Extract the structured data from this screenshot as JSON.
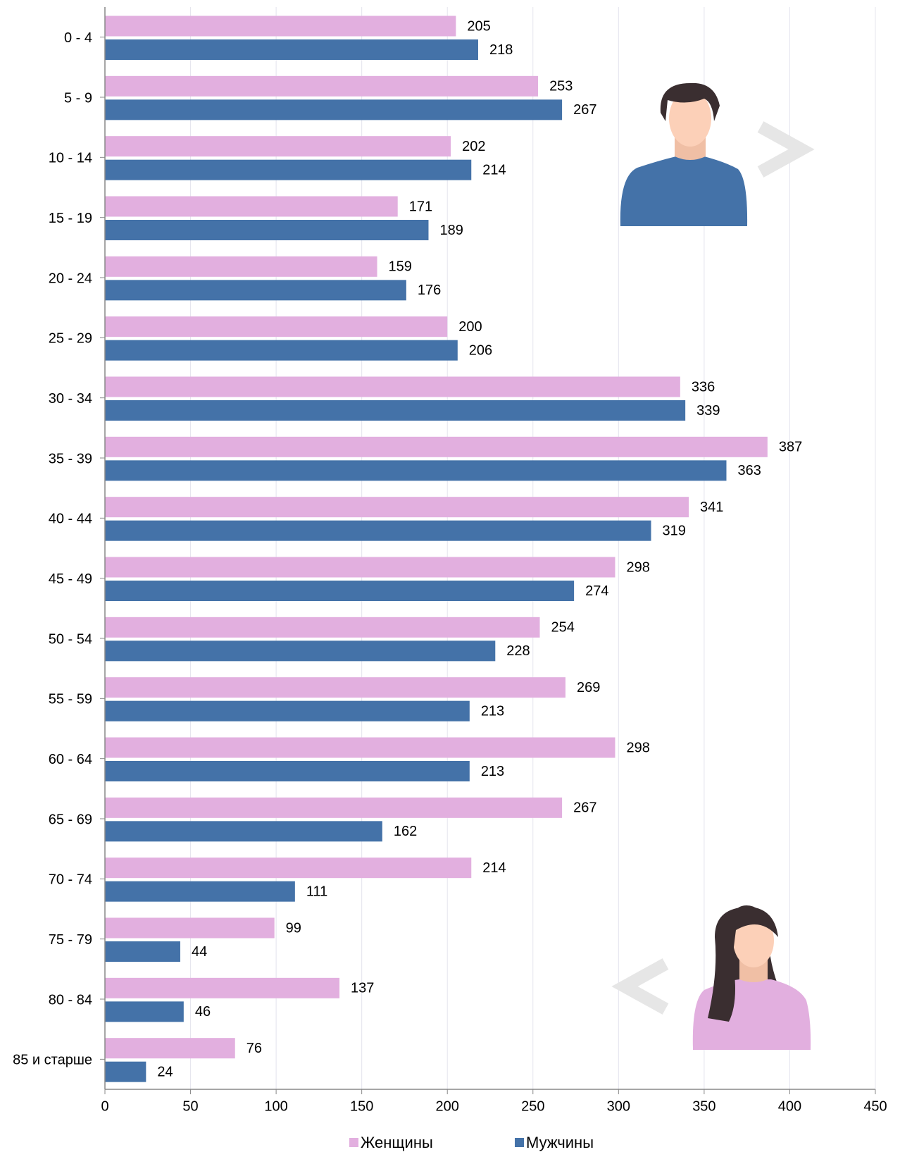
{
  "chart_data": {
    "type": "barh",
    "categories": [
      "0 - 4",
      "5 - 9",
      "10 - 14",
      "15 - 19",
      "20 - 24",
      "25 - 29",
      "30 - 34",
      "35 - 39",
      "40 - 44",
      "45 - 49",
      "50 - 54",
      "55 - 59",
      "60 - 64",
      "65 - 69",
      "70 - 74",
      "75 - 79",
      "80 - 84",
      "85 и старше"
    ],
    "series": [
      {
        "name": "Женщины",
        "color": "#e2afdf",
        "values": [
          205,
          253,
          202,
          171,
          159,
          200,
          336,
          387,
          341,
          298,
          254,
          269,
          298,
          267,
          214,
          99,
          137,
          76
        ]
      },
      {
        "name": "Мужчины",
        "color": "#4472a8",
        "values": [
          218,
          267,
          214,
          189,
          176,
          206,
          339,
          363,
          319,
          274,
          228,
          213,
          213,
          162,
          111,
          44,
          46,
          24
        ]
      }
    ],
    "xlim": [
      0,
      450
    ],
    "xticks": [
      0,
      50,
      100,
      150,
      200,
      250,
      300,
      350,
      400,
      450
    ],
    "grid": true,
    "legend": "bottom"
  }
}
